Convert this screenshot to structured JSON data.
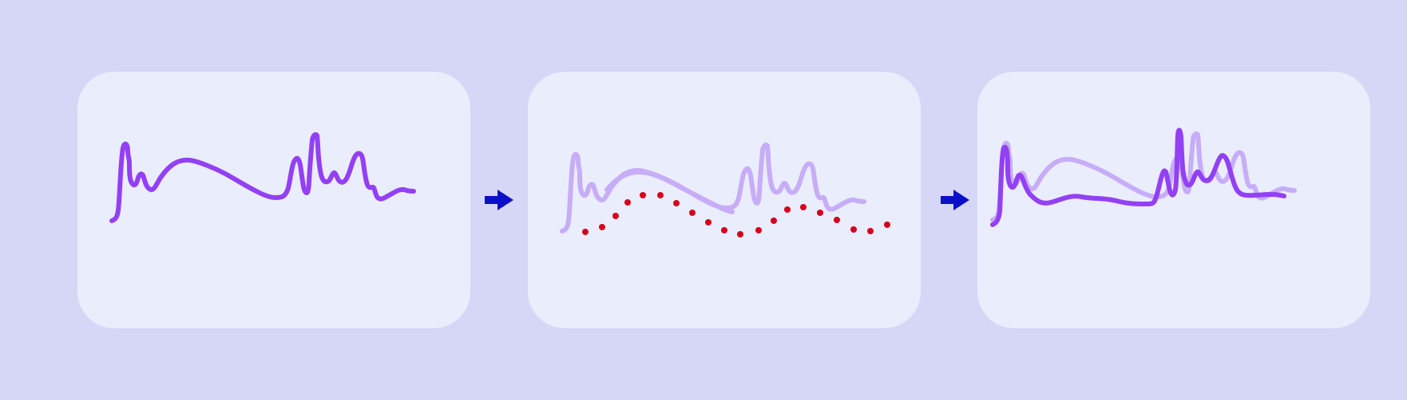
{
  "colors": {
    "background": "#d6d7f6",
    "panel": "#eaedfc",
    "curve": "#9340f5",
    "curve_faded": "#c7adf7",
    "dots": "#d6001c",
    "arrow": "#0b10c8"
  },
  "panels": [
    {
      "id": "original",
      "description_icon": "signal-curve"
    },
    {
      "id": "smoothed",
      "description_icon": "signal-with-sampled-points"
    },
    {
      "id": "overlay",
      "description_icon": "signal-overlay"
    }
  ]
}
